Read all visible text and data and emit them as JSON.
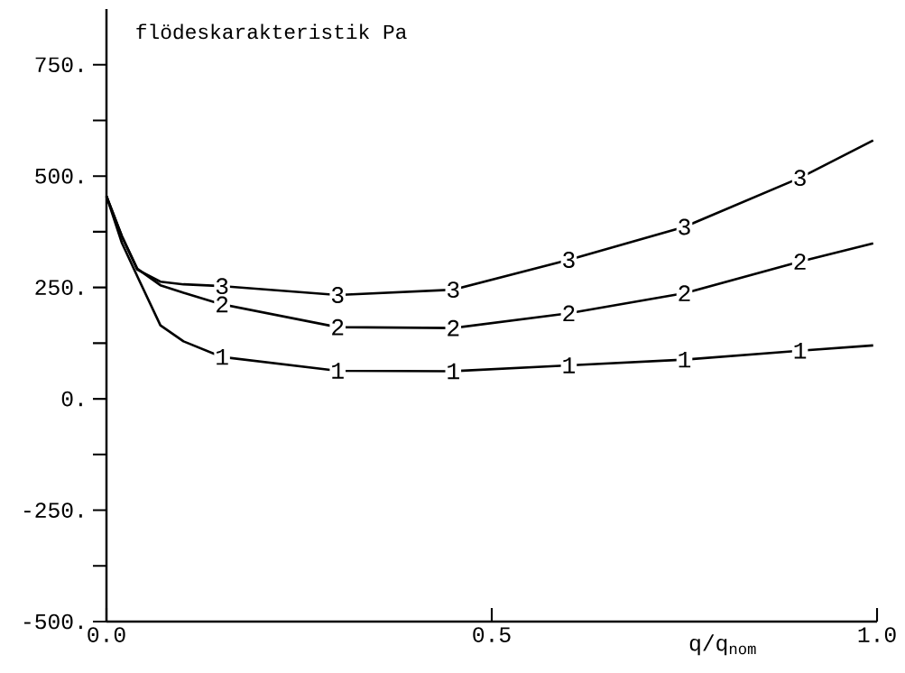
{
  "chart_data": {
    "type": "line",
    "title": "flödeskarakteristik Pa",
    "xlabel": "q/q$_{nom}$",
    "x": [
      0,
      0.02,
      0.04,
      0.07,
      0.1,
      0.15,
      0.3,
      0.45,
      0.6,
      0.75,
      0.9,
      0.995
    ],
    "series": [
      {
        "name": "1",
        "color": "#000000",
        "values": [
          455,
          350,
          275,
          165,
          129,
          94,
          63,
          62,
          75,
          88,
          108,
          120
        ]
      },
      {
        "name": "2",
        "color": "#000000",
        "values": [
          455,
          365,
          292,
          255,
          238,
          212,
          161,
          159,
          192,
          237,
          308,
          349
        ]
      },
      {
        "name": "3",
        "color": "#000000",
        "values": [
          455,
          365,
          290,
          263,
          257,
          253,
          233,
          245,
          312,
          386,
          496,
          580
        ]
      }
    ],
    "xlim": [
      0,
      1
    ],
    "ylim": [
      -500,
      875
    ],
    "xticks": [
      {
        "value": 0,
        "label": "0.0"
      },
      {
        "value": 0.5,
        "label": "0.5"
      },
      {
        "value": 1,
        "label": "1.0"
      }
    ],
    "yticks": [
      {
        "value": -500,
        "label": "-500."
      },
      {
        "value": -375,
        "label": null
      },
      {
        "value": -250,
        "label": "-250."
      },
      {
        "value": -125,
        "label": null
      },
      {
        "value": 0,
        "label": "0."
      },
      {
        "value": 125,
        "label": null
      },
      {
        "value": 250,
        "label": "250."
      },
      {
        "value": 375,
        "label": null
      },
      {
        "value": 500,
        "label": "500."
      },
      {
        "value": 625,
        "label": null
      },
      {
        "value": 750,
        "label": "750."
      }
    ],
    "grid": false,
    "legend": false
  }
}
